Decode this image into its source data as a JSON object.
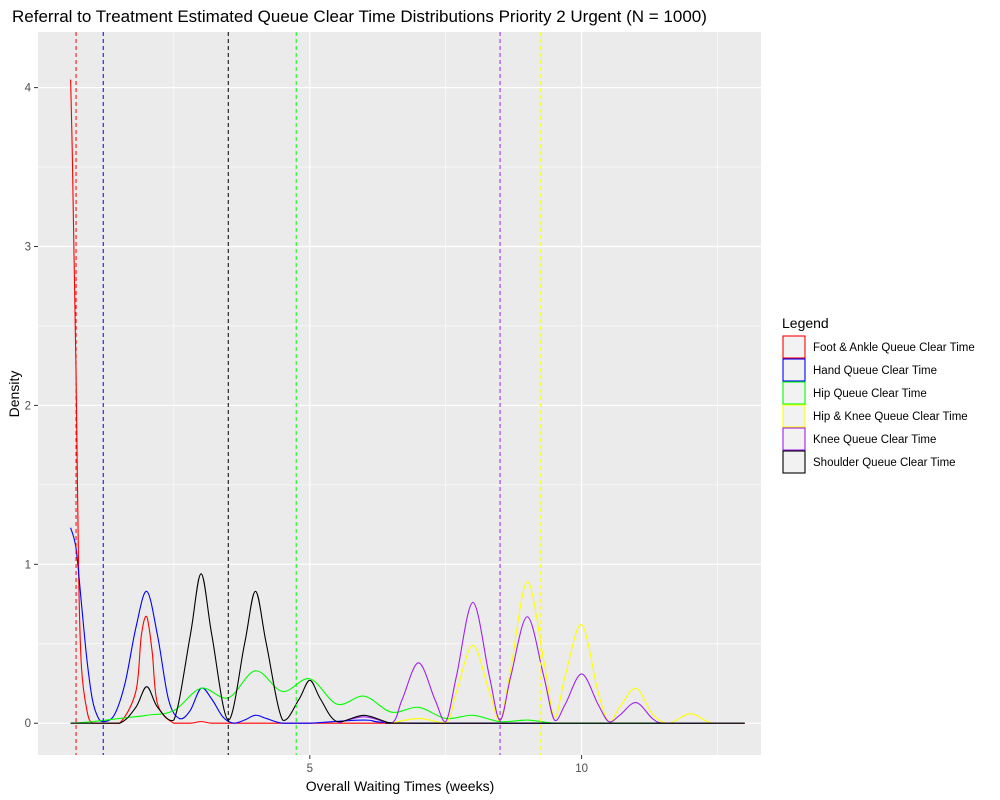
{
  "chart_data": {
    "type": "line",
    "title": "Referral to Treatment Estimated Queue Clear Time Distributions Priority 2 Urgent (N = 1000)",
    "xlabel": "Overall Waiting Times (weeks)",
    "ylabel": "Density",
    "xlim": [
      0.0,
      13.3
    ],
    "ylim": [
      -0.2,
      4.35
    ],
    "x_ticks": [
      5,
      10
    ],
    "x_tick_labels": [
      "5",
      "10"
    ],
    "y_ticks": [
      0,
      1,
      2,
      3,
      4
    ],
    "y_tick_labels": [
      "0",
      "1",
      "2",
      "3",
      "4"
    ],
    "grid": true,
    "legend_title": "Legend",
    "legend_position": "right",
    "series": [
      {
        "name": "Foot & Ankle Queue Clear Time",
        "color": "#ff0000",
        "mean": 0.7,
        "x": [
          0.6,
          0.63,
          0.66,
          0.7,
          0.75,
          0.8,
          0.9,
          1.0,
          1.2,
          1.5,
          1.8,
          1.9,
          2.0,
          2.1,
          2.2,
          2.5,
          2.8,
          3.0,
          3.2,
          3.5,
          4.0,
          5.0,
          6.0,
          13.0
        ],
        "values": [
          4.05,
          3.6,
          3.0,
          2.2,
          0.9,
          0.35,
          0.08,
          0.0,
          0.0,
          0.0,
          0.2,
          0.55,
          0.67,
          0.45,
          0.12,
          0.0,
          0.0,
          0.01,
          0.0,
          0.0,
          0.0,
          0.0,
          0.0,
          0.0
        ]
      },
      {
        "name": "Hand Queue Clear Time",
        "color": "#0000ff",
        "mean": 1.2,
        "x": [
          0.6,
          0.7,
          0.8,
          0.9,
          1.0,
          1.1,
          1.2,
          1.4,
          1.6,
          1.8,
          2.0,
          2.2,
          2.4,
          2.6,
          2.8,
          3.0,
          3.2,
          3.4,
          3.6,
          3.8,
          4.0,
          4.2,
          4.5,
          5.0,
          6.0,
          7.0,
          13.0
        ],
        "values": [
          1.23,
          1.1,
          0.75,
          0.4,
          0.15,
          0.04,
          0.01,
          0.05,
          0.25,
          0.6,
          0.83,
          0.55,
          0.15,
          0.03,
          0.08,
          0.22,
          0.15,
          0.04,
          0.0,
          0.02,
          0.05,
          0.03,
          0.0,
          0.0,
          0.02,
          0.0,
          0.0
        ]
      },
      {
        "name": "Hip Queue Clear Time",
        "color": "#00ff00",
        "mean": 4.75,
        "x": [
          0.6,
          1.0,
          1.5,
          2.0,
          2.5,
          3.0,
          3.5,
          4.0,
          4.5,
          5.0,
          5.5,
          6.0,
          6.5,
          7.0,
          7.5,
          8.0,
          8.5,
          9.0,
          9.5,
          10.0,
          13.0
        ],
        "values": [
          0.0,
          0.01,
          0.03,
          0.05,
          0.08,
          0.22,
          0.16,
          0.33,
          0.2,
          0.28,
          0.12,
          0.17,
          0.07,
          0.1,
          0.03,
          0.05,
          0.01,
          0.02,
          0.0,
          0.0,
          0.0
        ]
      },
      {
        "name": "Hip & Knee Queue Clear Time",
        "color": "#ffff00",
        "mean": 9.25,
        "x": [
          6.5,
          7.0,
          7.5,
          7.7,
          8.0,
          8.3,
          8.5,
          8.7,
          9.0,
          9.3,
          9.5,
          9.7,
          10.0,
          10.3,
          10.5,
          10.7,
          11.0,
          11.3,
          11.6,
          12.0,
          12.4,
          13.0
        ],
        "values": [
          0.0,
          0.03,
          0.0,
          0.2,
          0.49,
          0.2,
          0.02,
          0.35,
          0.89,
          0.4,
          0.04,
          0.3,
          0.62,
          0.2,
          0.01,
          0.1,
          0.22,
          0.06,
          0.0,
          0.06,
          0.0,
          0.0
        ]
      },
      {
        "name": "Knee Queue Clear Time",
        "color": "#a020f0",
        "mean": 8.5,
        "x": [
          5.5,
          6.0,
          6.5,
          6.7,
          7.0,
          7.3,
          7.5,
          7.7,
          8.0,
          8.3,
          8.5,
          8.7,
          9.0,
          9.3,
          9.5,
          9.7,
          10.0,
          10.3,
          10.5,
          10.7,
          11.0,
          11.3,
          11.5,
          12.0,
          13.0
        ],
        "values": [
          0.0,
          0.04,
          0.0,
          0.15,
          0.38,
          0.15,
          0.01,
          0.3,
          0.76,
          0.3,
          0.02,
          0.3,
          0.67,
          0.3,
          0.02,
          0.12,
          0.31,
          0.12,
          0.01,
          0.05,
          0.13,
          0.03,
          0.0,
          0.0,
          0.0
        ]
      },
      {
        "name": "Shoulder Queue Clear Time",
        "color": "#000000",
        "mean": 3.5,
        "x": [
          0.6,
          1.0,
          1.5,
          1.8,
          2.0,
          2.2,
          2.5,
          2.8,
          3.0,
          3.2,
          3.5,
          3.8,
          4.0,
          4.2,
          4.5,
          4.8,
          5.0,
          5.2,
          5.5,
          6.0,
          6.5,
          7.0,
          13.0
        ],
        "values": [
          0.0,
          0.0,
          0.0,
          0.1,
          0.23,
          0.1,
          0.02,
          0.55,
          0.94,
          0.55,
          0.02,
          0.5,
          0.83,
          0.5,
          0.02,
          0.15,
          0.27,
          0.15,
          0.01,
          0.05,
          0.0,
          0.0,
          0.0
        ]
      }
    ]
  }
}
